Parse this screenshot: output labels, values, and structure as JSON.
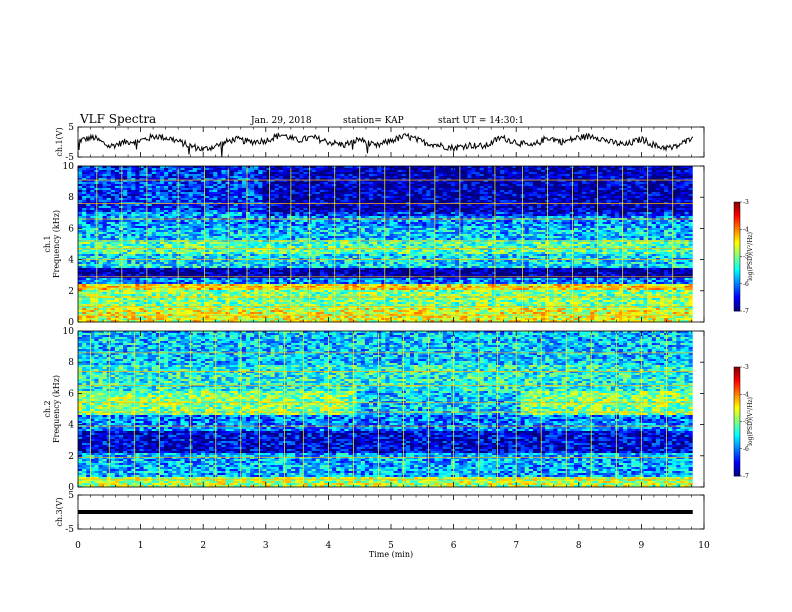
{
  "header": {
    "title": "VLF Spectra",
    "date": "Jan. 29, 2018",
    "station": "station= KAP",
    "start": "start UT =  14:30:1"
  },
  "chart_data": [
    {
      "type": "line",
      "ylabel": "ch.1(V)",
      "ylim": [
        -5,
        5
      ],
      "yticks": [
        "5",
        "-5"
      ],
      "xlim": [
        0,
        10
      ],
      "color": "#000000",
      "x": [
        0,
        0.25,
        0.5,
        0.75,
        1,
        1.25,
        1.5,
        1.75,
        2,
        2.25,
        2.5,
        2.75,
        3,
        3.25,
        3.5,
        3.75,
        4,
        4.25,
        4.5,
        4.75,
        5,
        5.25,
        5.5,
        5.75,
        6,
        6.25,
        6.5,
        6.75,
        7,
        7.25,
        7.5,
        7.75,
        8,
        8.25,
        8.5,
        8.75,
        9,
        9.25,
        9.5,
        9.75,
        9.82
      ],
      "y": [
        0.5,
        1.5,
        -1.5,
        0,
        0.5,
        2,
        1,
        -1,
        -2.5,
        -1,
        1,
        0,
        0.5,
        2.5,
        0.5,
        1.5,
        0,
        -1,
        1,
        -1.5,
        0.5,
        2,
        0,
        -1,
        -2,
        -1,
        -1.5,
        1.5,
        0,
        -1.5,
        1.5,
        0,
        1.5,
        2,
        0,
        -1,
        1,
        -1.5,
        -2,
        0.5,
        2.5
      ]
    },
    {
      "type": "heatmap",
      "ylabel": "ch.1\nFrequency (kHz)",
      "ylim": [
        0,
        10
      ],
      "yticks": [
        "0",
        "2",
        "4",
        "6",
        "8",
        "10"
      ],
      "xlim": [
        0,
        9.82
      ],
      "colorbar": {
        "label": "log(PSD)(V²/Hz)",
        "range": [
          -7,
          -3
        ],
        "ticks": [
          "-3",
          "-4",
          "-5",
          "-6",
          "-7"
        ]
      },
      "bands": [
        {
          "f": [
            0.0,
            0.9
          ],
          "level": -4.6
        },
        {
          "f": [
            0.9,
            2.1
          ],
          "level": -5.0
        },
        {
          "f": [
            2.1,
            2.5
          ],
          "level": -4.4
        },
        {
          "f": [
            2.5,
            2.8
          ],
          "level": -6.0
        },
        {
          "f": [
            2.8,
            3.4
          ],
          "level": -6.9
        },
        {
          "f": [
            3.4,
            4.4
          ],
          "level": -5.6
        },
        {
          "f": [
            4.4,
            5.2
          ],
          "level": -5.2
        },
        {
          "f": [
            5.2,
            6.0
          ],
          "level": -5.7
        },
        {
          "f": [
            6.0,
            7.0
          ],
          "level": -5.9
        },
        {
          "f": [
            7.0,
            10.0
          ],
          "level": -6.3
        }
      ],
      "lines_khz": [
        0.4,
        1.0,
        1.6,
        2.2,
        2.9,
        4.0,
        4.7,
        5.2,
        6.6,
        7.6,
        9.1
      ],
      "sferics_min": [
        0.3,
        0.7,
        1.1,
        1.6,
        2.02,
        2.4,
        2.7,
        3.06,
        3.4,
        3.7,
        4.1,
        4.5,
        4.9,
        5.3,
        5.7,
        6.1,
        6.66,
        7.1,
        7.5,
        7.9,
        8.3,
        8.7,
        9.1,
        9.5
      ]
    },
    {
      "type": "heatmap",
      "ylabel": "ch.2\nFrequency (kHz)",
      "ylim": [
        0,
        10
      ],
      "yticks": [
        "0",
        "2",
        "4",
        "6",
        "8",
        "10"
      ],
      "xlim": [
        0,
        9.82
      ],
      "colorbar": {
        "label": "log(PSD)(V²/Hz)",
        "range": [
          -7,
          -3
        ],
        "ticks": [
          "-3",
          "-4",
          "-5",
          "-6",
          "-7"
        ]
      },
      "bands": [
        {
          "f": [
            0.0,
            0.6
          ],
          "level": -4.8
        },
        {
          "f": [
            0.6,
            2.2
          ],
          "level": -5.8
        },
        {
          "f": [
            2.2,
            3.6
          ],
          "level": -6.6
        },
        {
          "f": [
            3.6,
            4.6
          ],
          "level": -6.0
        },
        {
          "f": [
            4.6,
            6.2
          ],
          "level": -5.0
        },
        {
          "f": [
            6.2,
            7.8
          ],
          "level": -5.4
        },
        {
          "f": [
            7.8,
            10.0
          ],
          "level": -5.7
        }
      ],
      "lines_khz": [
        0.5,
        1.9,
        3.9,
        4.8,
        5.4,
        6.5,
        7.4,
        8.6
      ],
      "sferics_min": [
        0.2,
        0.5,
        0.9,
        1.3,
        1.8,
        2.2,
        2.6,
        2.9,
        3.3,
        3.6,
        4.0,
        4.4,
        4.8,
        5.2,
        5.6,
        6.0,
        6.4,
        6.7,
        7.0,
        7.4,
        7.8,
        8.2,
        8.6,
        9.0,
        9.4
      ]
    },
    {
      "type": "line",
      "ylabel": "ch.3(V)",
      "ylim": [
        -5,
        5
      ],
      "yticks": [
        "5",
        "-5"
      ],
      "xlim": [
        0,
        10
      ],
      "xlabel": "Time (min)",
      "xticks": [
        "0",
        "1",
        "2",
        "3",
        "4",
        "5",
        "6",
        "7",
        "8",
        "9",
        "10"
      ],
      "x": [
        0,
        9.82
      ],
      "y": [
        0,
        0
      ]
    }
  ]
}
